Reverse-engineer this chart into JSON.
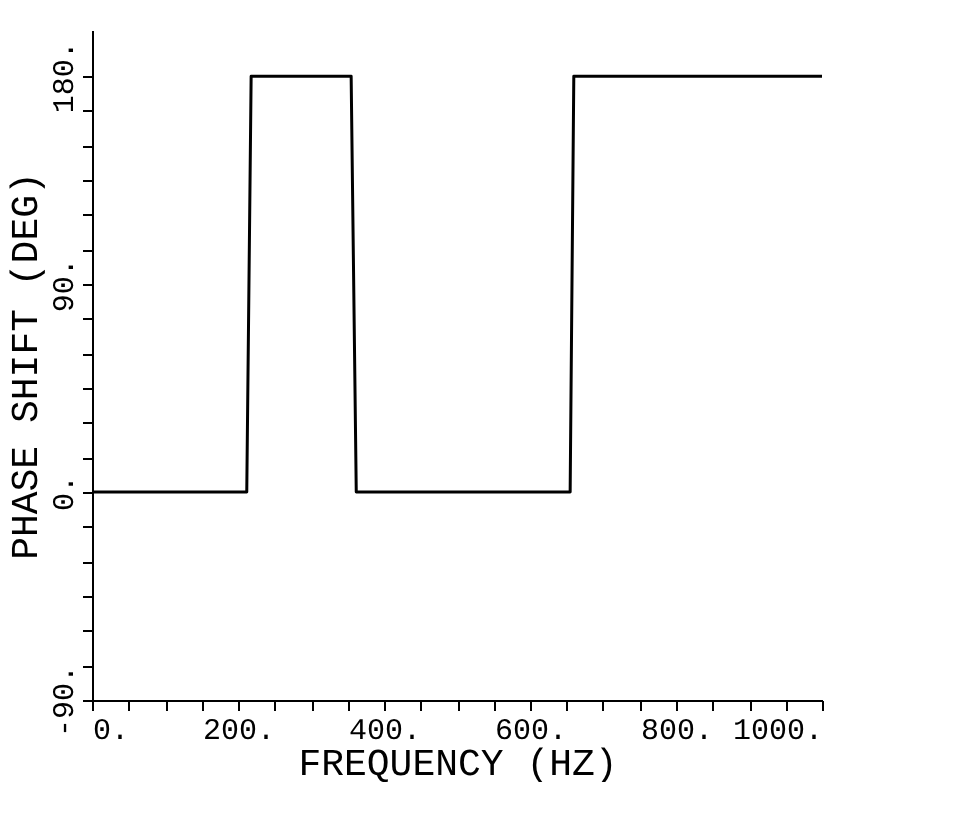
{
  "chart_data": {
    "type": "line",
    "xlabel": "FREQUENCY (HZ)",
    "ylabel": "PHASE SHIFT (DEG)",
    "x": [
      0,
      212,
      218,
      355,
      362,
      655,
      660,
      1000
    ],
    "series": [
      {
        "color": "#000000",
        "values": [
          0,
          0,
          180,
          180,
          0,
          0,
          180,
          180
        ]
      }
    ],
    "xlim": [
      0,
      1000
    ],
    "xticks": [
      {
        "value": 0,
        "label": "0."
      },
      {
        "value": 50,
        "label": null
      },
      {
        "value": 100,
        "label": null
      },
      {
        "value": 150,
        "label": null
      },
      {
        "value": 200,
        "label": "200."
      },
      {
        "value": 250,
        "label": null
      },
      {
        "value": 300,
        "label": null
      },
      {
        "value": 350,
        "label": null
      },
      {
        "value": 400,
        "label": "400."
      },
      {
        "value": 450,
        "label": null
      },
      {
        "value": 500,
        "label": null
      },
      {
        "value": 550,
        "label": null
      },
      {
        "value": 600,
        "label": "600."
      },
      {
        "value": 650,
        "label": null
      },
      {
        "value": 700,
        "label": null
      },
      {
        "value": 750,
        "label": null
      },
      {
        "value": 800,
        "label": "800."
      },
      {
        "value": 850,
        "label": null
      },
      {
        "value": 900,
        "label": null
      },
      {
        "value": 950,
        "label": null
      },
      {
        "value": 1000,
        "label": "1000."
      }
    ],
    "ylim": [
      -90,
      200
    ],
    "yticks": [
      {
        "value": -90,
        "label": "-90."
      },
      {
        "value": -75,
        "label": null
      },
      {
        "value": -60,
        "label": null
      },
      {
        "value": -45,
        "label": null
      },
      {
        "value": -30,
        "label": null
      },
      {
        "value": -15,
        "label": null
      },
      {
        "value": 0,
        "label": "0."
      },
      {
        "value": 15,
        "label": null
      },
      {
        "value": 30,
        "label": null
      },
      {
        "value": 45,
        "label": null
      },
      {
        "value": 60,
        "label": null
      },
      {
        "value": 75,
        "label": null
      },
      {
        "value": 90,
        "label": "90."
      },
      {
        "value": 105,
        "label": null
      },
      {
        "value": 120,
        "label": null
      },
      {
        "value": 135,
        "label": null
      },
      {
        "value": 150,
        "label": null
      },
      {
        "value": 165,
        "label": null
      },
      {
        "value": 180,
        "label": "180."
      }
    ],
    "grid": false,
    "marker": "none",
    "line_style": "solid"
  }
}
